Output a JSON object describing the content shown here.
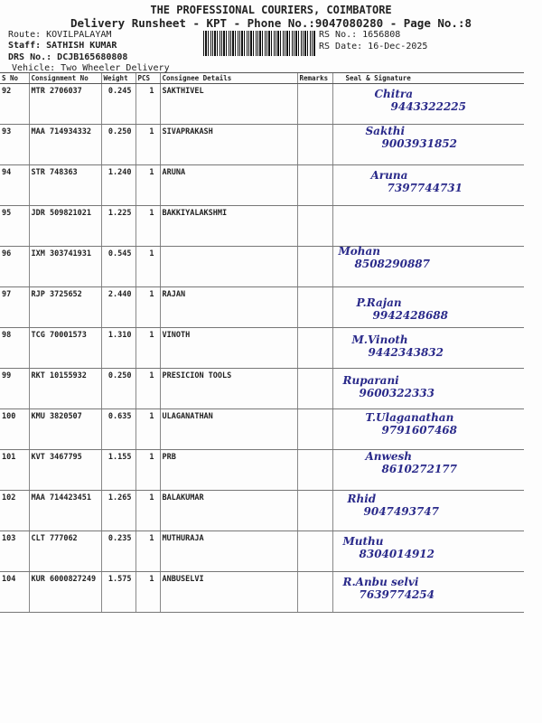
{
  "header": {
    "company": "THE PROFESSIONAL COURIERS, COIMBATORE",
    "subtitle": "Delivery Runsheet - KPT - Phone No.:9047080280 - Page No.:8",
    "route": "Route: KOVILPALAYAM",
    "staff": "Staff: SATHISH KUMAR",
    "drs": "DRS No.: DCJB165680808",
    "vehicle": "Vehicle: Two Wheeler Delivery",
    "rs_no": "RS No.: 1656808",
    "rs_date": "RS Date: 16-Dec-2025"
  },
  "columns": [
    "S No",
    "Consignment No",
    "Weight",
    "PCS",
    "Consignee Details",
    "Remarks",
    "Seal & Signature"
  ],
  "rows": [
    {
      "sno": "92",
      "cn": "MTR 2706037",
      "wt": "0.245",
      "pcs": "1",
      "name": "SAKTHIVEL",
      "sig": "Chitra",
      "phone": "9443322225"
    },
    {
      "sno": "93",
      "cn": "MAA 714934332",
      "wt": "0.250",
      "pcs": "1",
      "name": "SIVAPRAKASH",
      "sig": "Sakthi",
      "phone": "9003931852"
    },
    {
      "sno": "94",
      "cn": "STR 748363",
      "wt": "1.240",
      "pcs": "1",
      "name": "ARUNA",
      "sig": "Aruna",
      "phone": "7397744731"
    },
    {
      "sno": "95",
      "cn": "JDR 509821021",
      "wt": "1.225",
      "pcs": "1",
      "name": "BAKKIYALAKSHMI",
      "sig": "",
      "phone": ""
    },
    {
      "sno": "96",
      "cn": "IXM 303741931",
      "wt": "0.545",
      "pcs": "1",
      "name": "",
      "sig": "Mohan",
      "phone": "8508290887"
    },
    {
      "sno": "97",
      "cn": "RJP 3725652",
      "wt": "2.440",
      "pcs": "1",
      "name": "RAJAN",
      "sig": "P.Rajan",
      "phone": "9942428688"
    },
    {
      "sno": "98",
      "cn": "TCG 70001573",
      "wt": "1.310",
      "pcs": "1",
      "name": "VINOTH",
      "sig": "M.Vinoth",
      "phone": "9442343832"
    },
    {
      "sno": "99",
      "cn": "RKT 10155932",
      "wt": "0.250",
      "pcs": "1",
      "name": "PRESICION TOOLS",
      "sig": "Ruparani",
      "phone": "9600322333"
    },
    {
      "sno": "100",
      "cn": "KMU 3820507",
      "wt": "0.635",
      "pcs": "1",
      "name": "ULAGANATHAN",
      "sig": "T.Ulaganathan",
      "phone": "9791607468"
    },
    {
      "sno": "101",
      "cn": "KVT 3467795",
      "wt": "1.155",
      "pcs": "1",
      "name": "PRB",
      "sig": "Anwesh",
      "phone": "8610272177"
    },
    {
      "sno": "102",
      "cn": "MAA 714423451",
      "wt": "1.265",
      "pcs": "1",
      "name": "BALAKUMAR",
      "sig": "Rhid",
      "phone": "9047493747"
    },
    {
      "sno": "103",
      "cn": "CLT 777062",
      "wt": "0.235",
      "pcs": "1",
      "name": "MUTHURAJA",
      "sig": "Muthu",
      "phone": "8304014912"
    },
    {
      "sno": "104",
      "cn": "KUR 6000827249",
      "wt": "1.575",
      "pcs": "1",
      "name": "ANBUSELVI",
      "sig": "R.Anbu selvi",
      "phone": "7639774254"
    }
  ],
  "colors": {
    "ink": "#2a2a8a",
    "print": "#222222"
  }
}
